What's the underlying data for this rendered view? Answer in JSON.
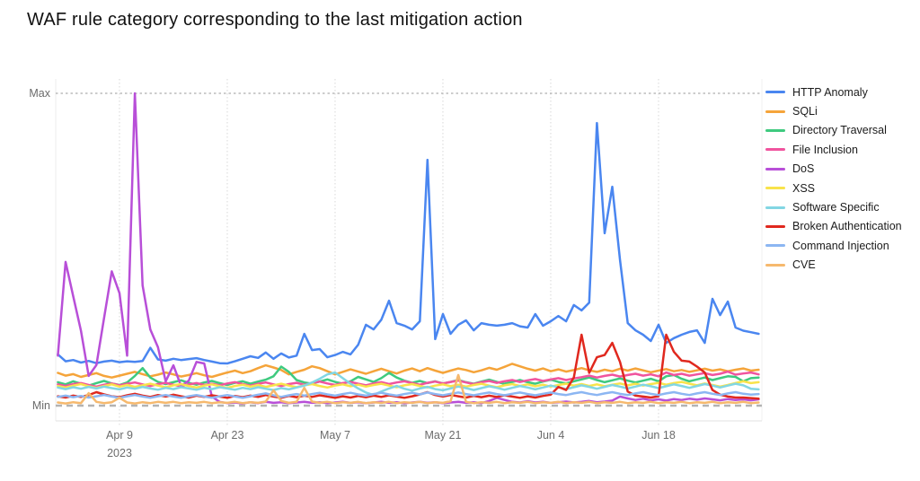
{
  "title": "WAF rule category corresponding to the last mitigation action",
  "chart_data": {
    "type": "line",
    "title": "WAF rule category corresponding to the last mitigation action",
    "xlabel": "",
    "ylabel": "",
    "value_scale": "relative units: 0 = Min gridline, 100 = Max gridline",
    "points": "daily values, chart spans early April 2023 to early July 2023",
    "grid": "vertical dotted gridlines at each x tick; dashed horizontal lines at Max and Min",
    "legend_position": "right",
    "y_axis": {
      "max_label": "Max",
      "min_label": "Min"
    },
    "x_ticks": [
      {
        "label": "Apr 9",
        "sublabel": "2023",
        "day": 8
      },
      {
        "label": "Apr 23",
        "day": 22
      },
      {
        "label": "May 7",
        "day": 36
      },
      {
        "label": "May 21",
        "day": 50
      },
      {
        "label": "Jun 4",
        "day": 64
      },
      {
        "label": "Jun 18",
        "day": 78
      }
    ],
    "series": [
      {
        "name": "HTTP Anomaly",
        "color": "#4a86f0",
        "values": [
          16.4,
          14.2,
          14.6,
          13.8,
          14.3,
          13.6,
          14.1,
          14.4,
          13.9,
          14.2,
          14.0,
          14.3,
          18.5,
          14.8,
          14.4,
          15.0,
          14.6,
          14.9,
          15.2,
          14.6,
          14.1,
          13.6,
          13.5,
          14.2,
          15.0,
          15.8,
          15.3,
          17.0,
          15.0,
          16.7,
          15.4,
          16.0,
          23.0,
          17.8,
          18.1,
          15.5,
          16.2,
          17.2,
          16.4,
          19.5,
          25.9,
          24.4,
          27.5,
          33.6,
          26.4,
          25.6,
          24.4,
          27.0,
          78.7,
          21.3,
          29.3,
          23.0,
          25.9,
          27.3,
          24.1,
          26.4,
          25.9,
          25.6,
          25.9,
          26.4,
          25.4,
          25.0,
          29.3,
          25.6,
          27.0,
          28.7,
          27.0,
          32.2,
          30.5,
          33.0,
          90.5,
          55.2,
          70.1,
          46.6,
          26.4,
          24.1,
          22.7,
          20.7,
          25.9,
          20.1,
          21.6,
          22.7,
          23.6,
          24.1,
          20.1,
          34.2,
          29.0,
          33.3,
          25.0,
          24.0,
          23.5,
          23.0
        ]
      },
      {
        "name": "SQLi",
        "color": "#f5a43a",
        "values": [
          10.5,
          9.6,
          10.1,
          9.2,
          9.8,
          10.4,
          9.5,
          9.0,
          9.6,
          10.2,
          10.8,
          10.1,
          9.4,
          9.9,
          10.6,
          10.0,
          9.3,
          9.8,
          10.4,
          9.7,
          9.2,
          9.9,
          10.6,
          11.2,
          10.4,
          11.0,
          12.0,
          12.9,
          12.2,
          11.4,
          10.0,
          10.8,
          11.5,
          12.6,
          12.0,
          11.0,
          10.0,
          10.8,
          11.6,
          10.9,
          10.2,
          11.0,
          11.8,
          11.0,
          10.3,
          11.2,
          11.9,
          11.0,
          12.0,
          11.2,
          10.5,
          11.2,
          11.9,
          11.4,
          10.7,
          11.3,
          12.1,
          11.5,
          12.4,
          13.4,
          12.6,
          11.8,
          11.2,
          11.9,
          11.0,
          11.6,
          10.9,
          11.4,
          12.0,
          11.3,
          10.8,
          11.5,
          11.0,
          11.8,
          11.2,
          11.9,
          11.3,
          10.7,
          11.2,
          11.7,
          11.0,
          11.4,
          10.8,
          11.3,
          11.8,
          11.2,
          11.6,
          11.0,
          11.5,
          11.9,
          11.2,
          11.5
        ]
      },
      {
        "name": "Directory Traversal",
        "color": "#3fca7f",
        "values": [
          7.5,
          6.8,
          7.8,
          7.0,
          6.4,
          7.2,
          7.9,
          7.1,
          6.6,
          7.4,
          9.5,
          12.0,
          9.0,
          7.6,
          6.9,
          7.5,
          8.1,
          7.3,
          6.7,
          7.4,
          7.9,
          7.2,
          6.6,
          7.3,
          7.8,
          7.0,
          7.7,
          8.3,
          9.4,
          12.5,
          10.8,
          8.2,
          7.4,
          7.0,
          7.7,
          8.4,
          7.6,
          7.0,
          7.8,
          9.2,
          8.4,
          7.6,
          8.8,
          10.5,
          9.0,
          8.0,
          7.3,
          7.9,
          7.2,
          7.8,
          7.1,
          7.6,
          8.2,
          7.5,
          7.0,
          7.7,
          8.3,
          7.6,
          7.0,
          7.6,
          8.2,
          7.5,
          7.0,
          7.7,
          8.3,
          7.6,
          7.1,
          7.8,
          8.4,
          9.0,
          8.2,
          7.5,
          8.1,
          8.7,
          8.0,
          7.4,
          8.0,
          8.6,
          7.8,
          9.4,
          9.8,
          8.6,
          7.8,
          8.4,
          9.0,
          8.2,
          8.8,
          9.4,
          9.2,
          7.8,
          8.8,
          9.0
        ]
      },
      {
        "name": "File Inclusion",
        "color": "#f0549e",
        "values": [
          6.8,
          6.3,
          6.9,
          7.2,
          6.6,
          6.1,
          6.7,
          7.1,
          6.5,
          7.0,
          7.4,
          6.8,
          6.3,
          6.9,
          7.3,
          6.7,
          6.2,
          6.8,
          7.2,
          6.6,
          7.0,
          6.5,
          7.1,
          7.5,
          6.9,
          6.4,
          7.0,
          7.4,
          6.8,
          6.3,
          6.9,
          7.3,
          6.7,
          7.2,
          7.7,
          7.1,
          6.6,
          7.2,
          7.6,
          7.0,
          6.5,
          7.1,
          7.5,
          6.9,
          7.4,
          7.8,
          7.2,
          6.7,
          7.3,
          7.7,
          7.1,
          7.6,
          8.0,
          7.4,
          6.9,
          7.5,
          7.9,
          7.3,
          7.8,
          8.2,
          7.6,
          8.1,
          8.5,
          7.9,
          8.4,
          8.8,
          8.2,
          8.7,
          9.1,
          9.6,
          9.0,
          9.5,
          9.9,
          9.3,
          9.8,
          10.2,
          9.6,
          10.0,
          9.4,
          10.6,
          9.8,
          10.2,
          9.6,
          10.0,
          10.4,
          9.8,
          10.2,
          10.9,
          9.9,
          10.3,
          10.6,
          10.0
        ]
      },
      {
        "name": "DoS",
        "color": "#b84fd8",
        "values": [
          16.0,
          46.0,
          35.0,
          24.0,
          9.5,
          13.0,
          28.0,
          43.0,
          36.0,
          16.0,
          100.0,
          38.5,
          24.4,
          18.7,
          7.8,
          12.9,
          6.3,
          8.0,
          14.0,
          13.5,
          2.9,
          1.2,
          0.8,
          1.0,
          0.7,
          1.1,
          0.8,
          1.2,
          0.9,
          1.1,
          0.8,
          1.0,
          1.2,
          0.9,
          1.1,
          0.8,
          1.0,
          1.2,
          0.9,
          1.1,
          0.8,
          1.0,
          1.2,
          0.9,
          1.1,
          0.8,
          1.0,
          1.2,
          0.9,
          1.1,
          0.8,
          1.0,
          1.2,
          0.9,
          1.1,
          0.8,
          1.5,
          2.5,
          1.8,
          1.2,
          1.0,
          1.4,
          1.0,
          1.2,
          0.9,
          1.1,
          1.3,
          1.0,
          1.2,
          1.5,
          1.1,
          1.3,
          1.6,
          2.9,
          2.3,
          1.8,
          2.2,
          1.7,
          2.0,
          1.6,
          2.1,
          1.8,
          2.2,
          1.9,
          2.3,
          2.0,
          1.7,
          2.1,
          1.8,
          2.0,
          1.7,
          2.0
        ]
      },
      {
        "name": "XSS",
        "color": "#f8e34b",
        "values": [
          6.3,
          5.8,
          6.4,
          6.9,
          6.2,
          5.7,
          6.3,
          6.8,
          6.1,
          6.6,
          6.0,
          6.5,
          7.0,
          6.4,
          5.9,
          6.5,
          6.9,
          6.3,
          5.8,
          6.4,
          6.8,
          6.2,
          5.7,
          6.3,
          6.7,
          6.1,
          6.6,
          6.0,
          6.5,
          7.0,
          6.4,
          5.9,
          6.5,
          6.9,
          6.3,
          5.8,
          6.4,
          6.8,
          6.2,
          6.7,
          6.1,
          6.6,
          7.0,
          6.4,
          5.9,
          6.5,
          6.9,
          6.3,
          5.8,
          6.4,
          6.8,
          6.2,
          6.7,
          6.1,
          6.6,
          7.0,
          6.4,
          5.9,
          6.5,
          6.9,
          6.3,
          6.8,
          6.2,
          6.7,
          6.1,
          6.6,
          7.0,
          6.4,
          6.9,
          6.3,
          6.8,
          6.2,
          6.7,
          7.1,
          6.5,
          7.0,
          6.4,
          6.9,
          7.3,
          6.7,
          7.2,
          7.6,
          7.0,
          6.5,
          7.1,
          6.6,
          6.1,
          6.6,
          7.2,
          7.8,
          7.2,
          7.5
        ]
      },
      {
        "name": "Software Specific",
        "color": "#82d6e3",
        "values": [
          5.8,
          5.3,
          5.9,
          5.4,
          6.0,
          5.5,
          6.1,
          5.6,
          5.2,
          5.8,
          5.4,
          6.0,
          5.5,
          5.1,
          5.7,
          5.3,
          5.9,
          5.5,
          5.1,
          5.7,
          5.3,
          5.9,
          5.5,
          5.1,
          5.7,
          5.3,
          5.9,
          5.4,
          5.0,
          5.6,
          5.2,
          5.8,
          6.4,
          7.4,
          8.6,
          10.0,
          10.6,
          8.8,
          7.0,
          5.5,
          4.2,
          3.4,
          4.5,
          5.5,
          6.3,
          5.4,
          4.8,
          5.5,
          6.0,
          5.3,
          4.9,
          5.5,
          6.1,
          5.6,
          5.0,
          5.6,
          6.2,
          5.7,
          5.1,
          5.7,
          6.3,
          5.8,
          5.2,
          5.8,
          6.4,
          5.9,
          5.3,
          5.9,
          6.5,
          6.0,
          5.4,
          6.0,
          6.6,
          6.1,
          5.5,
          6.1,
          6.7,
          6.2,
          5.6,
          6.2,
          6.8,
          6.3,
          5.7,
          6.3,
          6.9,
          6.4,
          5.8,
          6.4,
          7.0,
          6.5,
          5.4,
          5.2
        ]
      },
      {
        "name": "Broken Authentication",
        "color": "#e0281e",
        "values": [
          3.0,
          2.6,
          3.2,
          2.8,
          3.4,
          4.3,
          3.6,
          3.0,
          2.7,
          3.3,
          3.8,
          3.2,
          2.8,
          3.4,
          2.9,
          3.5,
          3.0,
          2.6,
          3.2,
          2.8,
          3.3,
          2.9,
          2.5,
          3.1,
          2.7,
          3.2,
          2.8,
          3.4,
          2.9,
          2.5,
          3.1,
          2.7,
          3.2,
          2.8,
          3.3,
          2.9,
          2.5,
          3.0,
          2.6,
          3.1,
          2.7,
          3.2,
          2.8,
          3.3,
          2.9,
          2.5,
          3.0,
          3.6,
          4.3,
          3.4,
          2.9,
          3.4,
          3.0,
          2.6,
          3.1,
          2.7,
          3.2,
          2.8,
          3.3,
          2.9,
          2.5,
          3.0,
          2.6,
          3.1,
          3.5,
          6.0,
          5.0,
          9.0,
          22.7,
          10.5,
          15.5,
          16.2,
          20.1,
          14.0,
          4.5,
          3.2,
          2.9,
          2.6,
          3.0,
          22.7,
          17.2,
          14.4,
          14.1,
          12.5,
          10.6,
          5.0,
          3.5,
          2.9,
          2.6,
          2.6,
          2.4,
          2.2
        ]
      },
      {
        "name": "Command Injection",
        "color": "#8cb6f2",
        "values": [
          2.8,
          3.2,
          2.7,
          3.1,
          2.6,
          3.0,
          3.4,
          2.9,
          2.5,
          3.0,
          3.4,
          2.9,
          2.5,
          3.0,
          3.4,
          2.9,
          2.5,
          3.0,
          3.4,
          2.9,
          2.5,
          3.0,
          3.4,
          2.9,
          2.5,
          3.0,
          3.5,
          3.9,
          3.3,
          2.8,
          3.3,
          3.7,
          3.2,
          3.7,
          4.1,
          3.6,
          3.2,
          3.7,
          4.1,
          3.6,
          3.2,
          3.7,
          4.1,
          3.6,
          3.2,
          3.7,
          4.1,
          3.6,
          4.2,
          3.7,
          3.3,
          3.8,
          4.2,
          3.7,
          3.3,
          3.8,
          4.2,
          3.7,
          3.3,
          3.8,
          4.2,
          3.7,
          3.3,
          3.8,
          4.2,
          3.7,
          3.4,
          3.9,
          4.3,
          3.8,
          3.4,
          3.9,
          4.3,
          3.8,
          3.4,
          3.9,
          4.3,
          3.8,
          3.4,
          3.9,
          4.3,
          3.8,
          3.4,
          3.9,
          4.3,
          3.8,
          3.4,
          3.9,
          4.3,
          3.8,
          3.5,
          3.7
        ]
      },
      {
        "name": "CVE",
        "color": "#f6b96e",
        "values": [
          1.0,
          0.7,
          1.1,
          0.8,
          4.0,
          1.2,
          0.8,
          1.1,
          2.5,
          1.0,
          0.7,
          1.1,
          0.8,
          1.2,
          0.9,
          1.2,
          0.8,
          1.1,
          0.9,
          1.2,
          0.8,
          1.1,
          0.9,
          1.2,
          0.8,
          1.1,
          0.9,
          1.3,
          4.9,
          1.5,
          0.9,
          1.2,
          5.7,
          1.3,
          0.9,
          1.2,
          0.8,
          1.1,
          0.9,
          1.2,
          0.8,
          1.1,
          0.9,
          1.2,
          0.8,
          1.1,
          0.9,
          1.2,
          0.8,
          1.1,
          0.9,
          1.4,
          9.8,
          1.2,
          0.8,
          1.1,
          0.9,
          1.2,
          0.8,
          1.1,
          0.9,
          1.2,
          0.8,
          1.1,
          0.9,
          1.2,
          0.8,
          1.1,
          0.9,
          1.2,
          0.8,
          1.1,
          0.9,
          1.2,
          0.8,
          1.1,
          0.9,
          1.2,
          0.8,
          1.1,
          0.9,
          1.2,
          0.8,
          1.1,
          0.9,
          1.2,
          0.8,
          1.1,
          0.9,
          1.2,
          0.8,
          1.0
        ]
      }
    ]
  },
  "colors": {
    "title": "#111111",
    "axis_label": "#6b6b6b",
    "grid": "#d8d8d8",
    "max_line": "#9a9a9a",
    "min_line": "#b3b3b3",
    "plot_border": "#e2e2e2"
  }
}
